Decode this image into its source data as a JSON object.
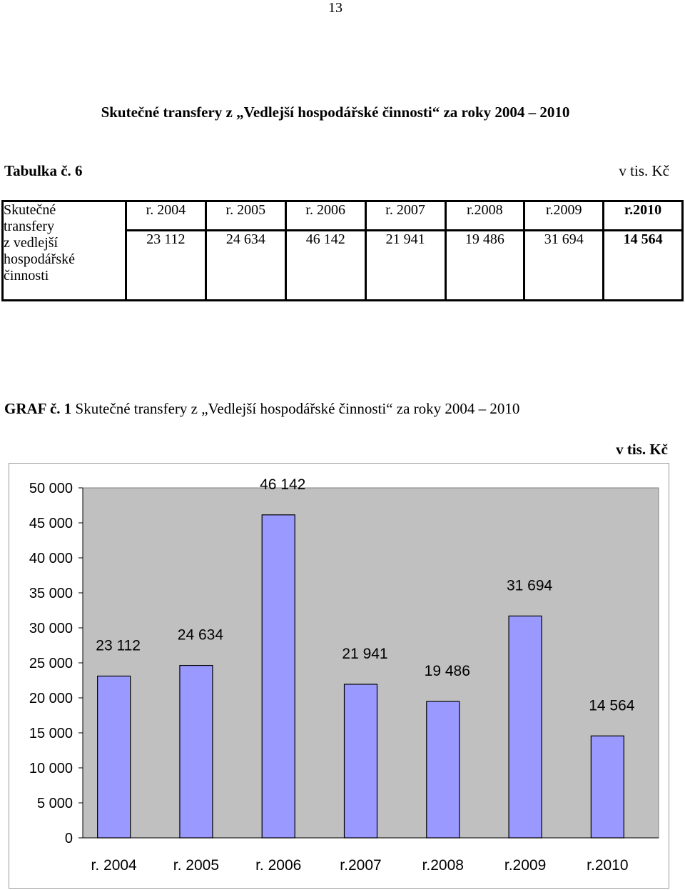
{
  "page_number": "13",
  "title": "Skutečné transfery z „Vedlejší hospodářské činnosti“ za roky 2004 – 2010",
  "table": {
    "label": "Tabulka č. 6",
    "unit": "v tis. Kč",
    "row_header": [
      "Skutečné",
      "transfery",
      "z vedlejší",
      "hospodářské",
      "činnosti"
    ],
    "years": [
      "r. 2004",
      "r. 2005",
      "r. 2006",
      "r. 2007",
      "r.2008",
      "r.2009",
      "r.2010"
    ],
    "values": [
      "23 112",
      "24 634",
      "46 142",
      "21 941",
      "19 486",
      "31 694",
      "14 564"
    ]
  },
  "graf": {
    "label": "GRAF č. 1",
    "caption": "Skutečné transfery z „Vedlejší hospodářské činnosti“ za roky 2004 – 2010",
    "unit": "v tis. Kč"
  },
  "chart_data": {
    "type": "bar",
    "categories": [
      "r. 2004",
      "r. 2005",
      "r. 2006",
      "r.2007",
      "r.2008",
      "r.2009",
      "r.2010"
    ],
    "values": [
      23112,
      24634,
      46142,
      21941,
      19486,
      31694,
      14564
    ],
    "data_labels": [
      "23 112",
      "24 634",
      "46 142",
      "21 941",
      "19 486",
      "31 694",
      "14 564"
    ],
    "y_ticks": [
      0,
      5000,
      10000,
      15000,
      20000,
      25000,
      30000,
      35000,
      40000,
      45000,
      50000
    ],
    "y_tick_labels": [
      "0",
      "5 000",
      "10 000",
      "15 000",
      "20 000",
      "25 000",
      "30 000",
      "35 000",
      "40 000",
      "45 000",
      "50 000"
    ],
    "ylim": [
      0,
      50000
    ],
    "grid": false,
    "legend": "none",
    "plot_background": "#c0c0c0",
    "bar_color": "#9999ff",
    "bar_edge_color": "#000000"
  }
}
